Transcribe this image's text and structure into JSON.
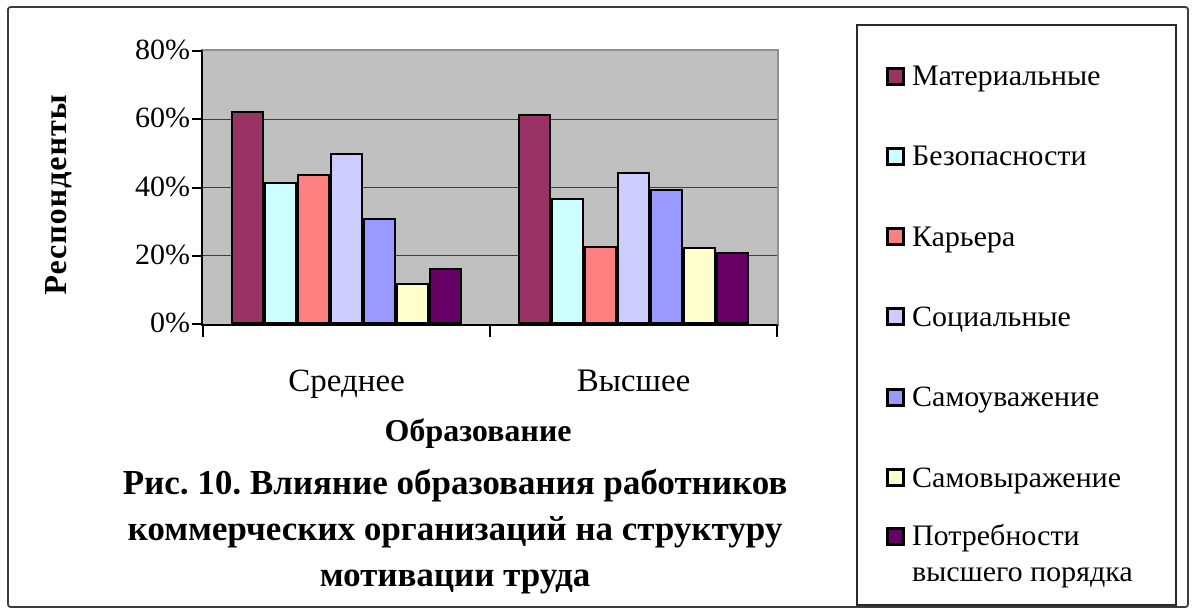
{
  "chart_data": {
    "type": "bar",
    "title": "Рис. 10. Влияние образования работников\nкоммерческих организаций на структуру\nмотивации труда",
    "xlabel": "Образование",
    "ylabel": "Респонденты",
    "categories": [
      "Среднее",
      "Высшее"
    ],
    "series": [
      {
        "name": "Материальные",
        "color": "#993366",
        "values": [
          62.5,
          61.5
        ]
      },
      {
        "name": "Безопасности",
        "color": "#CCFFFF",
        "values": [
          41.5,
          37
        ]
      },
      {
        "name": "Карьера",
        "color": "#FF8080",
        "values": [
          44,
          23
        ]
      },
      {
        "name": "Социальные",
        "color": "#CCCCFF",
        "values": [
          50,
          44.5
        ]
      },
      {
        "name": "Самоуважение",
        "color": "#9999FF",
        "values": [
          31,
          39.5
        ]
      },
      {
        "name": "Самовыражение",
        "color": "#FFFFCC",
        "values": [
          12,
          22.5
        ]
      },
      {
        "name": "Потребности высшего порядка",
        "color": "#660066",
        "values": [
          16.5,
          21
        ]
      }
    ],
    "ylim": [
      0,
      80
    ],
    "yticks": [
      0,
      20,
      40,
      60,
      80
    ],
    "ytick_labels": [
      "0%",
      "20%",
      "40%",
      "60%",
      "80%"
    ],
    "grid": true,
    "legend_position": "right",
    "plot_background": "#C0C0C0",
    "bar_border_color": "#000000"
  }
}
